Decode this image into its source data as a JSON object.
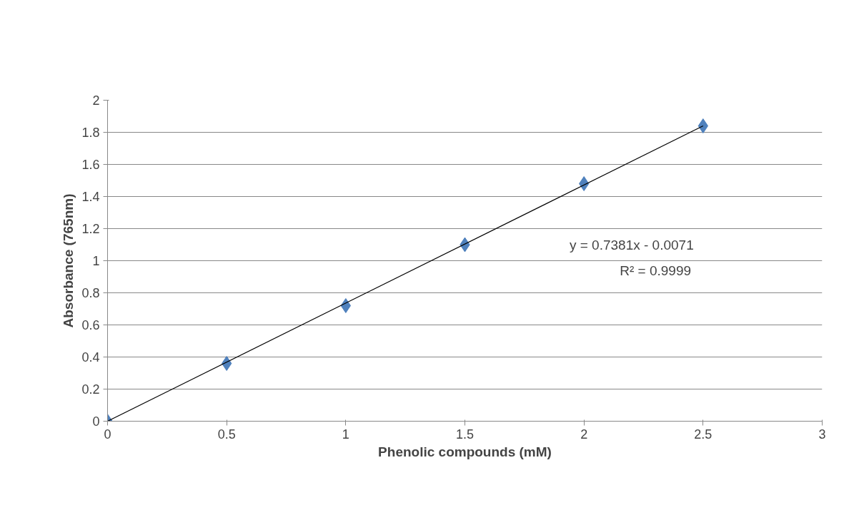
{
  "chart_data": {
    "type": "scatter",
    "xlabel": "Phenolic compounds (mM)",
    "ylabel": "Absorbance (765nm)",
    "x": [
      0,
      0.5,
      1,
      1.5,
      2,
      2.5
    ],
    "series": [
      {
        "color": "#4f81bd",
        "values": [
          0,
          0.36,
          0.72,
          1.1,
          1.48,
          1.84
        ]
      },
      {
        "type": "line",
        "color": "#000000",
        "x": [
          0,
          2.5
        ],
        "values": [
          0,
          1.84
        ],
        "marker": "none"
      }
    ],
    "annotations": [
      "y = 0.7381x - 0.0071",
      "R² = 0.9999"
    ],
    "xlim": [
      0,
      3
    ],
    "xticks": [
      0,
      0.5,
      1,
      1.5,
      2,
      2.5,
      3
    ],
    "ylim": [
      0,
      2
    ],
    "yticks": [
      0,
      0.2,
      0.4,
      0.6,
      0.8,
      1,
      1.2,
      1.4,
      1.6,
      1.8,
      2
    ],
    "grid": "y",
    "marker": "diamond"
  }
}
